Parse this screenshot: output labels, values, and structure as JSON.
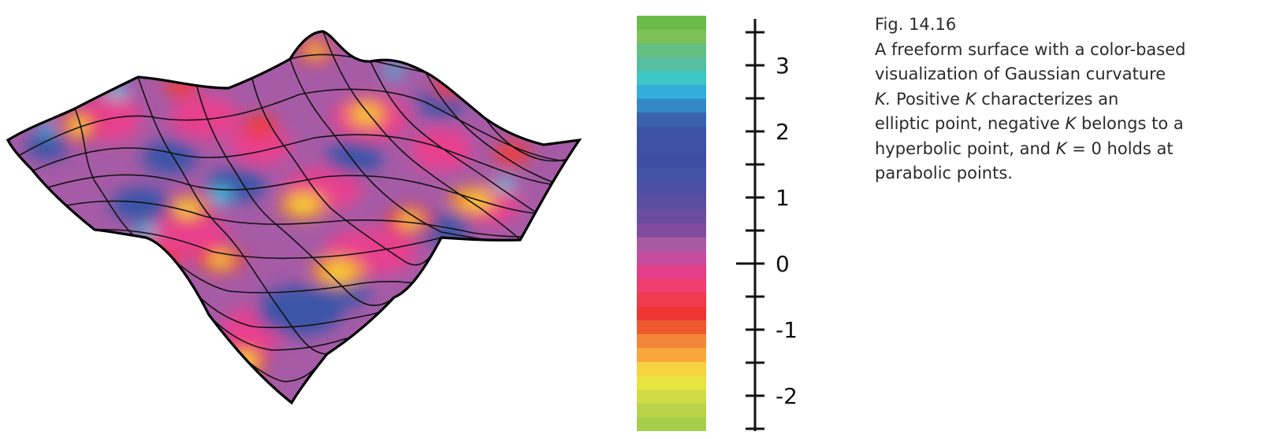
{
  "figure": {
    "label": "Fig. 14.16",
    "caption_lines": [
      [
        {
          "t": "A freeform surface with a color-based"
        }
      ],
      [
        {
          "t": "visualization of Gaussian curvature"
        }
      ],
      [
        {
          "t": "K.",
          "i": true
        },
        {
          "t": "  Positive "
        },
        {
          "t": "K",
          "i": true
        },
        {
          "t": " characterizes an"
        }
      ],
      [
        {
          "t": "elliptic point, negative "
        },
        {
          "t": "K",
          "i": true
        },
        {
          "t": " belongs to a"
        }
      ],
      [
        {
          "t": "hyperbolic point, and "
        },
        {
          "t": "K",
          "i": true
        },
        {
          "t": " = 0 holds at"
        }
      ],
      [
        {
          "t": "parabolic points."
        }
      ]
    ]
  },
  "colorbar": {
    "range": [
      -2.5,
      3.75
    ],
    "bands_top_to_bottom": [
      "#69bb4a",
      "#7ec05a",
      "#65be82",
      "#55bfa0",
      "#3ec6c8",
      "#33aedc",
      "#3388c6",
      "#3a62ad",
      "#3d52a5",
      "#3f4fa4",
      "#3f4ea3",
      "#4452a6",
      "#4d4fa2",
      "#5a4ea0",
      "#6b4c9f",
      "#7f4c9e",
      "#a65aa2",
      "#c64c9e",
      "#e43d8a",
      "#ee3e6d",
      "#ee3a4d",
      "#ee3533",
      "#ee5a30",
      "#f2873a",
      "#f8a73f",
      "#f6d240",
      "#e8e440",
      "#cfdc45",
      "#b8d448",
      "#a8cf4c"
    ]
  },
  "scale": {
    "tick_labels": [
      "3",
      "2",
      "1",
      "0",
      "-1",
      "-2"
    ],
    "label_values": [
      3,
      2,
      1,
      0,
      -1,
      -2
    ],
    "minor_tick_step": 0.5,
    "range": [
      -2.5,
      3.75
    ]
  },
  "surface": {
    "color_key": {
      "yellow": "#f7e23c",
      "orange": "#f7941d",
      "red": "#ee3e3e",
      "pink": "#e8408f",
      "purple": "#a55aa5",
      "blue": "#3a55a8",
      "cyan": "#3ac4dc",
      "mesh": "#111111"
    }
  }
}
